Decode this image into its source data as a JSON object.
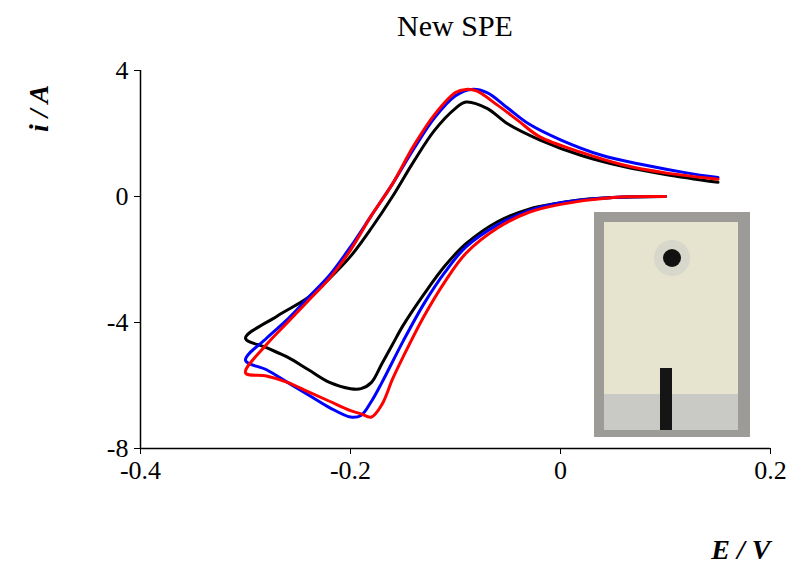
{
  "chart_data": {
    "type": "line",
    "title": "New SPE",
    "xlabel": "E / V",
    "ylabel": "i / A",
    "xlim": [
      -0.4,
      0.2
    ],
    "xticks": [
      -0.4,
      -0.2,
      0,
      0.2
    ],
    "ylim": [
      -8,
      4
    ],
    "yticks": [
      -8,
      -4,
      0,
      4
    ],
    "grid": false,
    "series": [
      {
        "color": "#000000",
        "x": [
          0.1,
          0.05,
          0.02,
          0,
          -0.03,
          -0.06,
          -0.09,
          -0.11,
          -0.13,
          -0.15,
          -0.16,
          -0.17,
          -0.18,
          -0.19,
          -0.2,
          -0.22,
          -0.24,
          -0.26,
          -0.28,
          -0.3,
          -0.27,
          -0.24,
          -0.22,
          -0.2,
          -0.18,
          -0.16,
          -0.14,
          -0.12,
          -0.1,
          -0.09,
          -0.07,
          -0.05,
          -0.02,
          0.02,
          0.06,
          0.1,
          0.15
        ],
        "values": [
          0,
          -0.03,
          -0.1,
          -0.2,
          -0.4,
          -0.8,
          -1.5,
          -2.2,
          -3.1,
          -4.1,
          -4.7,
          -5.3,
          -5.9,
          -6.1,
          -6.1,
          -5.9,
          -5.5,
          -5.1,
          -4.8,
          -4.5,
          -3.8,
          -3.2,
          -2.6,
          -1.9,
          -1.0,
          0,
          1.1,
          2.1,
          2.8,
          3.0,
          2.8,
          2.3,
          1.8,
          1.3,
          0.95,
          0.7,
          0.45
        ]
      },
      {
        "color": "#0000ff",
        "x": [
          0.1,
          0.05,
          0,
          -0.03,
          -0.06,
          -0.09,
          -0.11,
          -0.13,
          -0.15,
          -0.17,
          -0.18,
          -0.19,
          -0.2,
          -0.22,
          -0.24,
          -0.26,
          -0.28,
          -0.3,
          -0.28,
          -0.26,
          -0.24,
          -0.22,
          -0.2,
          -0.18,
          -0.16,
          -0.14,
          -0.12,
          -0.1,
          -0.085,
          -0.07,
          -0.05,
          -0.03,
          0,
          0.04,
          0.08,
          0.12,
          0.15
        ],
        "values": [
          0,
          -0.03,
          -0.2,
          -0.45,
          -0.9,
          -1.6,
          -2.4,
          -3.4,
          -4.6,
          -5.9,
          -6.5,
          -6.95,
          -7.0,
          -6.7,
          -6.3,
          -5.9,
          -5.5,
          -5.2,
          -4.5,
          -3.9,
          -3.2,
          -2.5,
          -1.6,
          -0.6,
          0.4,
          1.5,
          2.5,
          3.2,
          3.4,
          3.3,
          2.8,
          2.3,
          1.8,
          1.3,
          1.0,
          0.75,
          0.6
        ]
      },
      {
        "color": "#ff0000",
        "x": [
          0.1,
          0.05,
          0,
          -0.03,
          -0.06,
          -0.09,
          -0.11,
          -0.13,
          -0.15,
          -0.16,
          -0.17,
          -0.18,
          -0.19,
          -0.2,
          -0.22,
          -0.24,
          -0.26,
          -0.28,
          -0.3,
          -0.28,
          -0.26,
          -0.24,
          -0.22,
          -0.2,
          -0.18,
          -0.16,
          -0.14,
          -0.12,
          -0.1,
          -0.09,
          -0.08,
          -0.06,
          -0.04,
          -0.02,
          0.02,
          0.06,
          0.1,
          0.15
        ],
        "values": [
          0,
          -0.03,
          -0.25,
          -0.5,
          -1.0,
          -1.8,
          -2.7,
          -3.8,
          -5.1,
          -5.8,
          -6.6,
          -7.0,
          -6.9,
          -6.8,
          -6.5,
          -6.2,
          -5.9,
          -5.7,
          -5.6,
          -4.7,
          -4.0,
          -3.3,
          -2.6,
          -1.7,
          -0.6,
          0.4,
          1.6,
          2.6,
          3.3,
          3.4,
          3.35,
          2.9,
          2.4,
          1.9,
          1.4,
          1.0,
          0.75,
          0.55
        ]
      }
    ]
  }
}
